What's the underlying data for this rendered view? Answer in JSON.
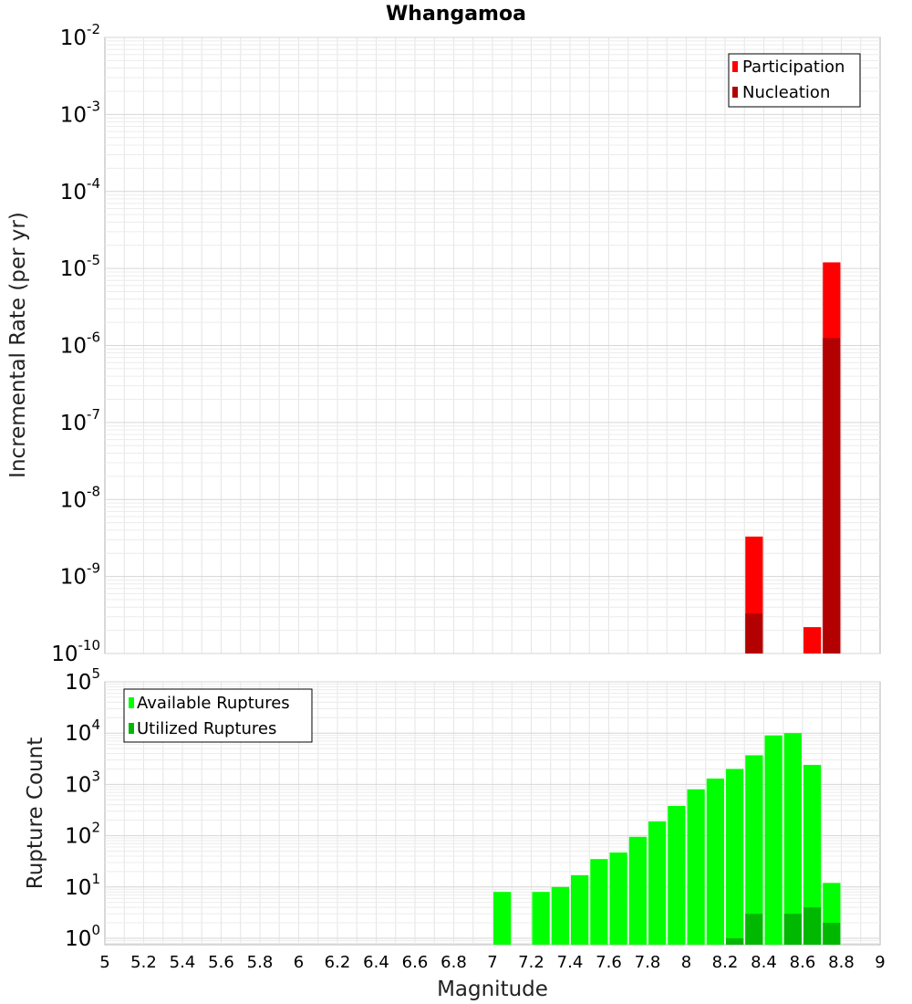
{
  "chart_data": {
    "title": "Whangamoa",
    "xlabel": "Magnitude",
    "xlim": [
      5,
      9
    ],
    "x_ticks": [
      "5",
      "5.2",
      "5.4",
      "5.6",
      "5.8",
      "6",
      "6.2",
      "6.4",
      "6.6",
      "6.8",
      "7",
      "7.2",
      "7.4",
      "7.6",
      "7.8",
      "8",
      "8.2",
      "8.4",
      "8.6",
      "8.8",
      "9"
    ],
    "bin_width": 0.1,
    "panels": [
      {
        "type": "bar",
        "scale": "log",
        "ylabel": "Incremental Rate (per yr)",
        "ylim": [
          1e-10,
          0.01
        ],
        "y_tick_labels": [
          {
            "base": "10",
            "exp": "-10"
          },
          {
            "base": "10",
            "exp": "-9"
          },
          {
            "base": "10",
            "exp": "-8"
          },
          {
            "base": "10",
            "exp": "-7"
          },
          {
            "base": "10",
            "exp": "-6"
          },
          {
            "base": "10",
            "exp": "-5"
          },
          {
            "base": "10",
            "exp": "-4"
          },
          {
            "base": "10",
            "exp": "-3"
          },
          {
            "base": "10",
            "exp": "-2"
          }
        ],
        "legend_position": "top-right",
        "series": [
          {
            "name": "Participation",
            "color": "#ff0000",
            "points": [
              [
                8.35,
                3.3e-09
              ],
              [
                8.65,
                2.2e-10
              ],
              [
                8.75,
                1.2e-05
              ]
            ]
          },
          {
            "name": "Nucleation",
            "color": "#b30000",
            "points": [
              [
                8.35,
                3.3e-10
              ],
              [
                8.75,
                1.25e-06
              ]
            ]
          }
        ]
      },
      {
        "type": "bar",
        "scale": "log",
        "ylabel": "Rupture Count",
        "ylim": [
          0.75,
          100000
        ],
        "y_tick_labels": [
          {
            "base": "10",
            "exp": "0"
          },
          {
            "base": "10",
            "exp": "1"
          },
          {
            "base": "10",
            "exp": "2"
          },
          {
            "base": "10",
            "exp": "3"
          },
          {
            "base": "10",
            "exp": "4"
          },
          {
            "base": "10",
            "exp": "5"
          }
        ],
        "legend_position": "top-left",
        "series": [
          {
            "name": "Available Ruptures",
            "color": "#00ff00",
            "points": [
              [
                7.05,
                8
              ],
              [
                7.25,
                8
              ],
              [
                7.35,
                10
              ],
              [
                7.45,
                17
              ],
              [
                7.55,
                35
              ],
              [
                7.65,
                47
              ],
              [
                7.75,
                95
              ],
              [
                7.85,
                190
              ],
              [
                7.95,
                380
              ],
              [
                8.05,
                800
              ],
              [
                8.15,
                1300
              ],
              [
                8.25,
                2000
              ],
              [
                8.35,
                3700
              ],
              [
                8.45,
                9000
              ],
              [
                8.55,
                10000
              ],
              [
                8.65,
                2400
              ],
              [
                8.75,
                12
              ]
            ]
          },
          {
            "name": "Utilized Ruptures",
            "color": "#00b800",
            "points": [
              [
                8.25,
                1
              ],
              [
                8.35,
                3
              ],
              [
                8.55,
                3
              ],
              [
                8.65,
                4
              ],
              [
                8.75,
                2
              ]
            ]
          }
        ]
      }
    ]
  }
}
